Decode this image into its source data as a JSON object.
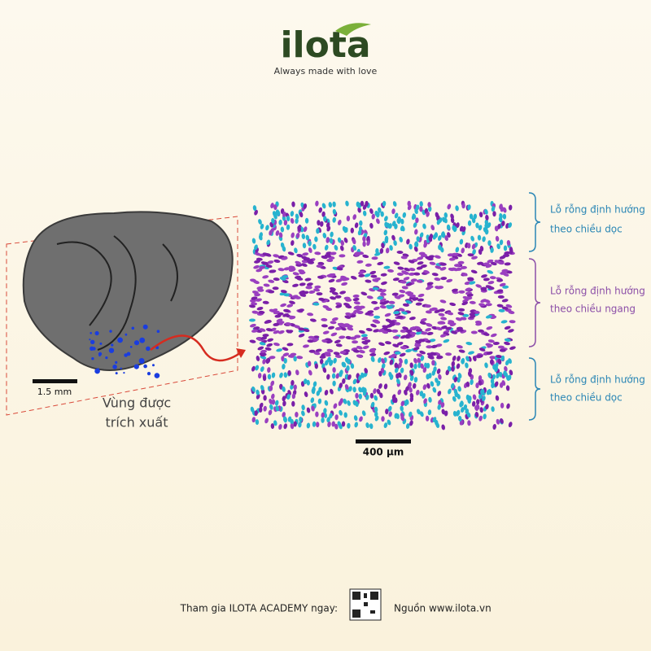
{
  "logo": {
    "name": "ilota",
    "tagline": "Always made with love"
  },
  "left_panel": {
    "scale_bar": "1.5 mm",
    "region_label": [
      "Vùng được",
      "trích xuất"
    ]
  },
  "right_panel": {
    "scale_bar": "400 µm",
    "labels": [
      [
        "Lỗ rỗng định hướng",
        "theo chiều dọc"
      ],
      [
        "Lỗ rỗng định hướng",
        "theo chiều ngang"
      ],
      [
        "Lỗ rỗng định hướng",
        "theo chiều dọc"
      ]
    ]
  },
  "footer": {
    "join": "Tham gia ILOTA ACADEMY ngay:",
    "source": "Nguồn www.ilota.vn"
  }
}
